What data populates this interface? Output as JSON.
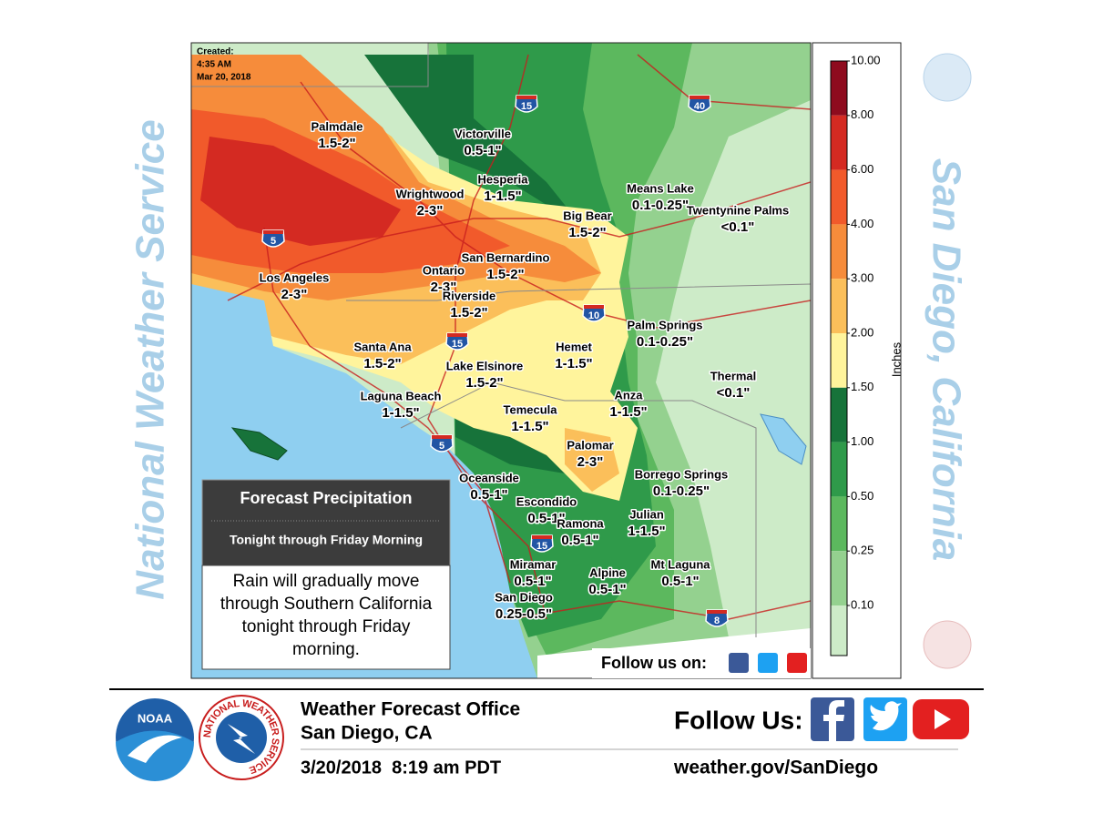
{
  "side_left": "National Weather Service",
  "side_right": "San Diego, California",
  "map": {
    "created": [
      "Created:",
      "4:35 AM",
      "Mar 20, 2018"
    ],
    "labels": [
      {
        "name": "Palmdale",
        "amount": "1.5-2\""
      },
      {
        "name": "Victorville",
        "amount": "0.5-1\""
      },
      {
        "name": "Hesperia",
        "amount": "1-1.5\""
      },
      {
        "name": "Wrightwood",
        "amount": "2-3\""
      },
      {
        "name": "Means Lake",
        "amount": "0.1-0.25\""
      },
      {
        "name": "Twentynine Palms",
        "amount": "<0.1\""
      },
      {
        "name": "Big Bear",
        "amount": "1.5-2\""
      },
      {
        "name": "San Bernardino",
        "amount": "1.5-2\""
      },
      {
        "name": "Ontario",
        "amount": "2-3\""
      },
      {
        "name": "Los Angeles",
        "amount": "2-3\""
      },
      {
        "name": "Riverside",
        "amount": "1.5-2\""
      },
      {
        "name": "Palm Springs",
        "amount": "0.1-0.25\""
      },
      {
        "name": "Hemet",
        "amount": "1-1.5\""
      },
      {
        "name": "Santa Ana",
        "amount": "1.5-2\""
      },
      {
        "name": "Lake Elsinore",
        "amount": "1.5-2\""
      },
      {
        "name": "Thermal",
        "amount": "<0.1\""
      },
      {
        "name": "Laguna Beach",
        "amount": "1-1.5\""
      },
      {
        "name": "Anza",
        "amount": "1-1.5\""
      },
      {
        "name": "Temecula",
        "amount": "1-1.5\""
      },
      {
        "name": "Palomar",
        "amount": "2-3\""
      },
      {
        "name": "Oceanside",
        "amount": "0.5-1\""
      },
      {
        "name": "Borrego Springs",
        "amount": "0.1-0.25\""
      },
      {
        "name": "Escondido",
        "amount": "0.5-1\""
      },
      {
        "name": "Ramona",
        "amount": "0.5-1\""
      },
      {
        "name": "Julian",
        "amount": "1-1.5\""
      },
      {
        "name": "Miramar",
        "amount": "0.5-1\""
      },
      {
        "name": "Alpine",
        "amount": "0.5-1\""
      },
      {
        "name": "Mt Laguna",
        "amount": "0.5-1\""
      },
      {
        "name": "San Diego",
        "amount": "0.25-0.5\""
      }
    ],
    "highways": [
      "15",
      "40",
      "5",
      "10",
      "15",
      "5",
      "15",
      "8"
    ],
    "follow": "Follow us on:"
  },
  "legend": {
    "title": "Inches",
    "labels": [
      "10.00",
      "8.00",
      "6.00",
      "4.00",
      "3.00",
      "2.00",
      "1.50",
      "1.00",
      "0.50",
      "0.25",
      "0.10"
    ],
    "colors": [
      "#8e0b1e",
      "#d42a22",
      "#f15a2b",
      "#f68c3b",
      "#fbbf5a",
      "#fff49c",
      "#17733a",
      "#2f9a4a",
      "#5cb85e",
      "#94d18f",
      "#cdebc8"
    ]
  },
  "box": {
    "title": "Forecast Precipitation",
    "subtitle": "Tonight through Friday Morning",
    "text": "Rain will gradually move through Southern California tonight through Friday morning."
  },
  "footer": {
    "noaa": "NOAA",
    "nws": "NATIONAL WEATHER SERVICE",
    "office": "Weather Forecast Office",
    "location": "San Diego, CA",
    "date": "3/20/2018  8:19 am PDT",
    "follow": "Follow Us:",
    "url": "weather.gov/SanDiego"
  }
}
